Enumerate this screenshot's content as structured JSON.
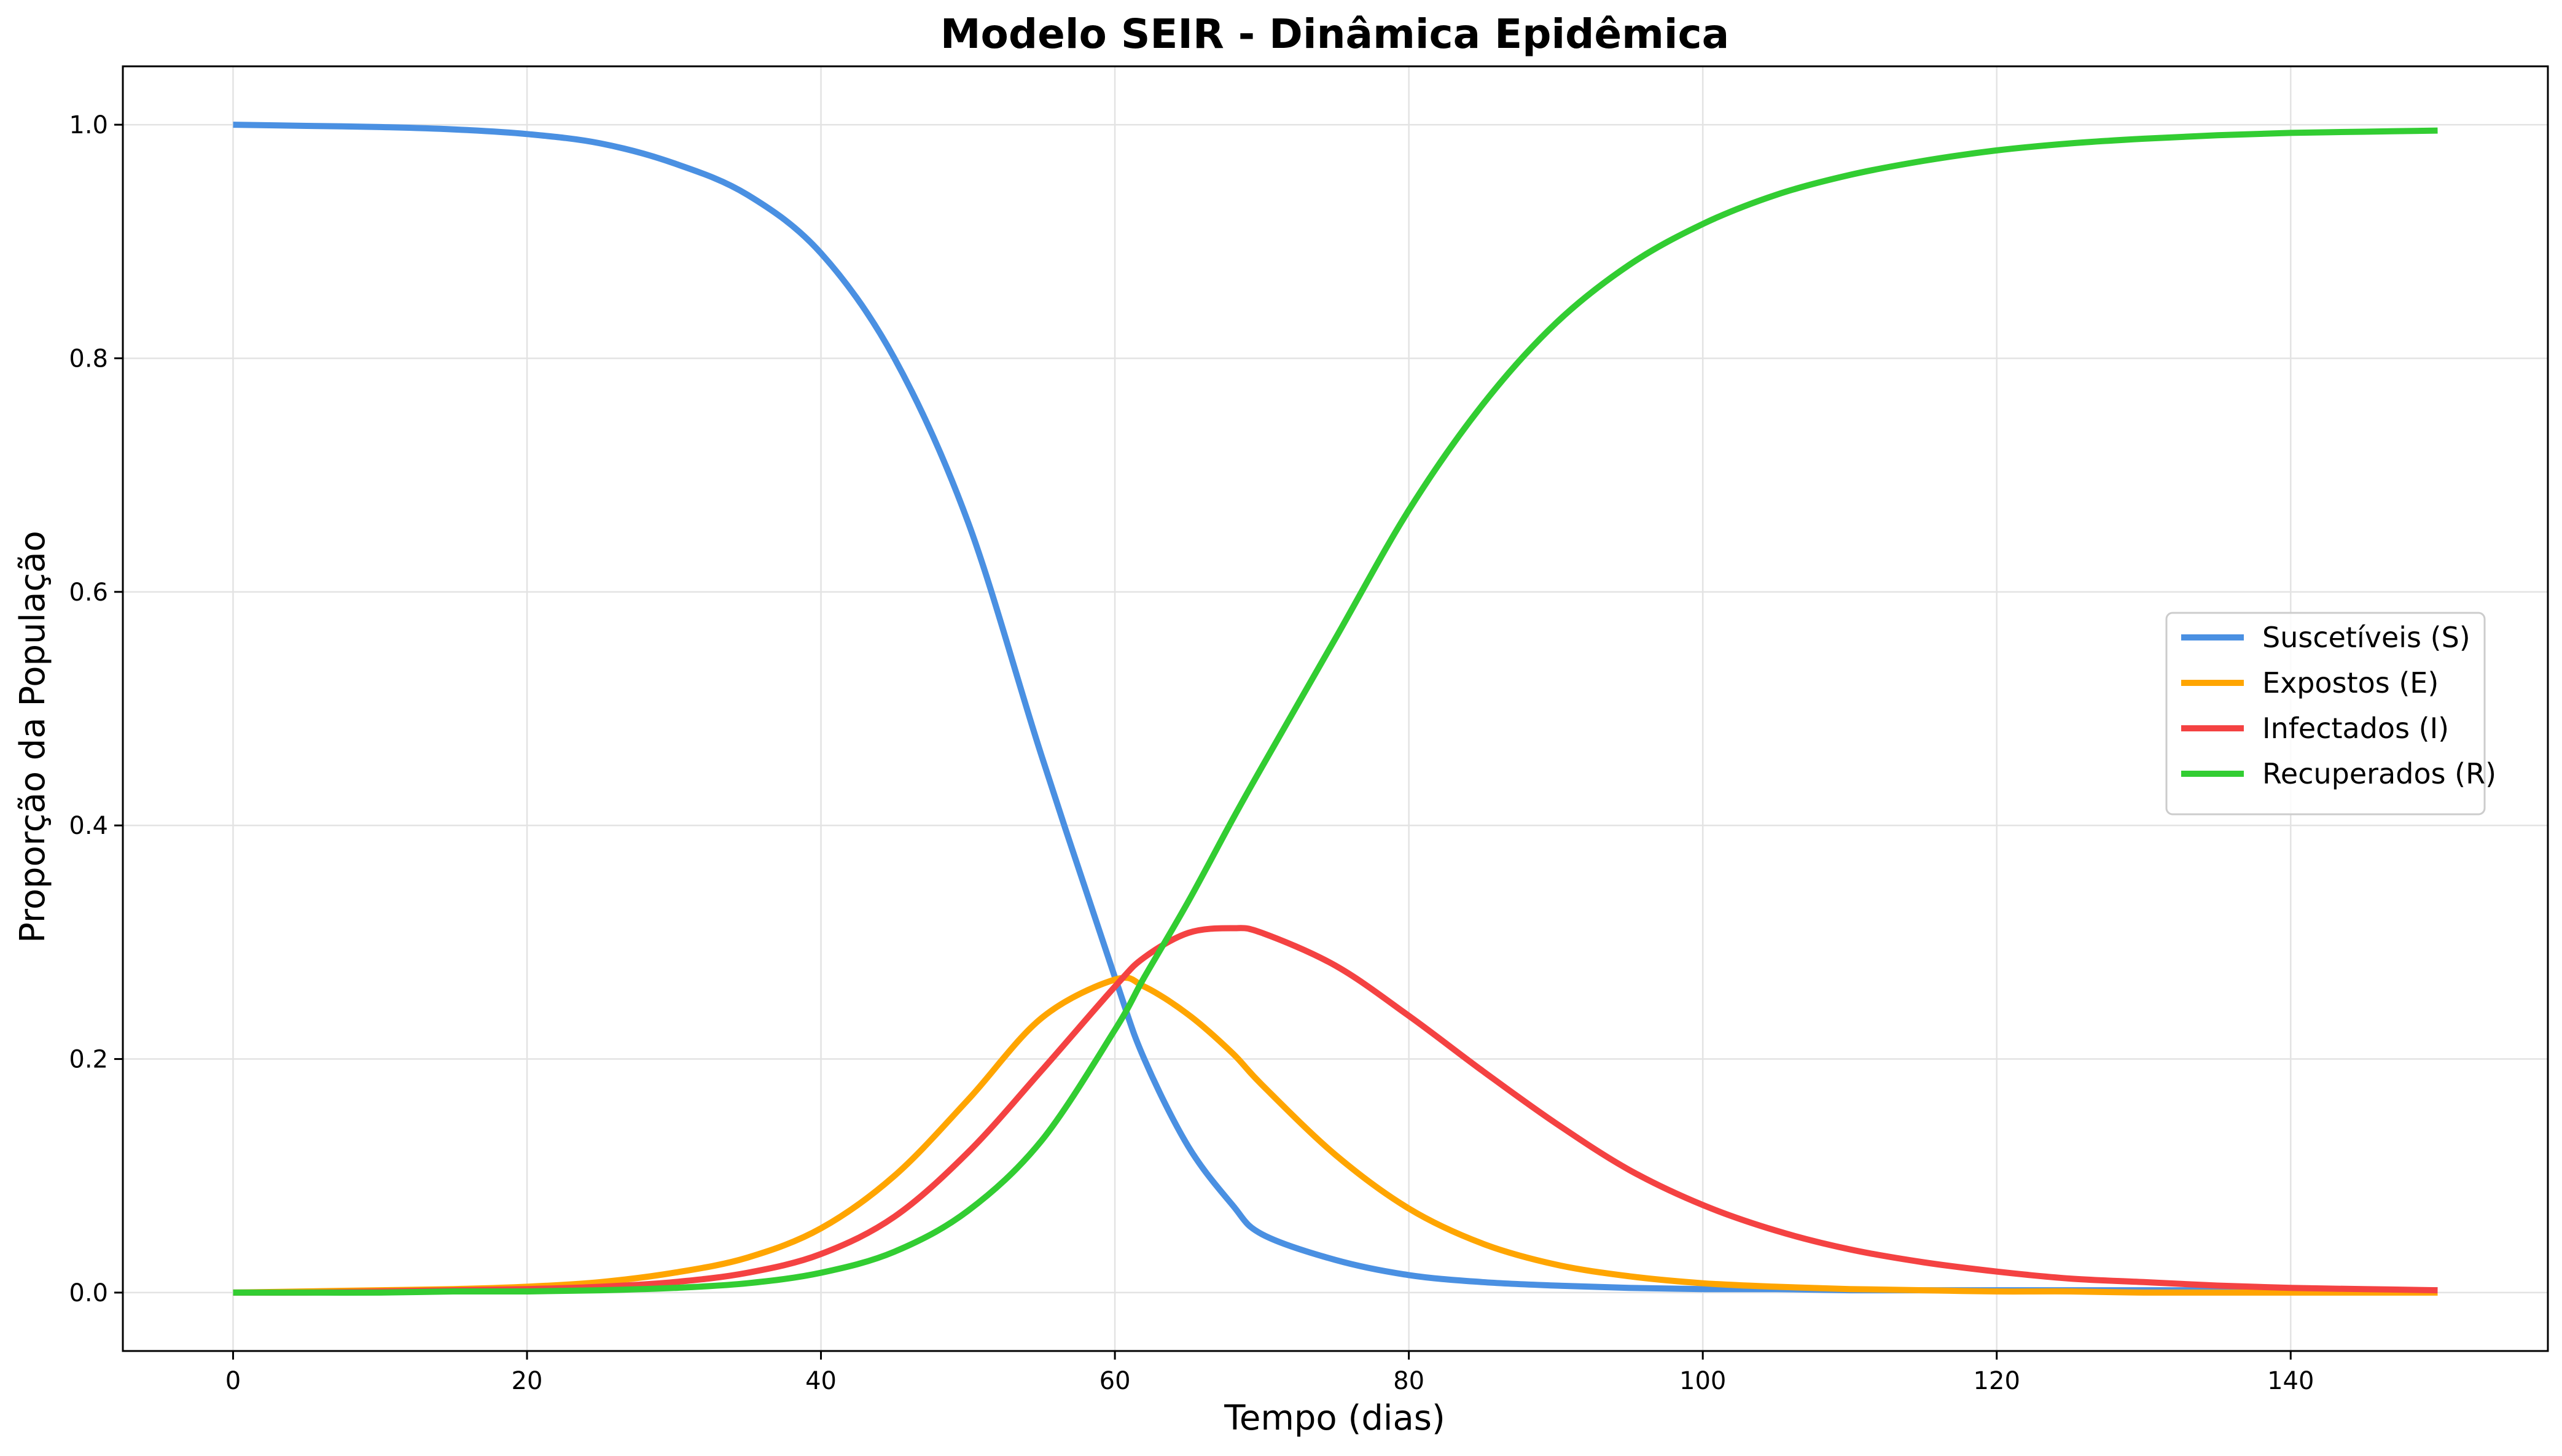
{
  "chart_data": {
    "type": "line",
    "title": "Modelo SEIR - Dinâmica Epidêmica",
    "xlabel": "Tempo (dias)",
    "ylabel": "Proporção da População",
    "xlim": [
      -7.5,
      157.5
    ],
    "ylim": [
      -0.05,
      1.05
    ],
    "xticks": [
      0,
      20,
      40,
      60,
      80,
      100,
      120,
      140
    ],
    "yticks": [
      0.0,
      0.2,
      0.4,
      0.6,
      0.8,
      1.0
    ],
    "xtick_labels": [
      "0",
      "20",
      "40",
      "60",
      "80",
      "100",
      "120",
      "140"
    ],
    "ytick_labels": [
      "0.0",
      "0.2",
      "0.4",
      "0.6",
      "0.8",
      "1.0"
    ],
    "grid": true,
    "legend_position": "center-right",
    "x": [
      0,
      5,
      10,
      15,
      20,
      25,
      30,
      35,
      40,
      45,
      50,
      55,
      60,
      62,
      65,
      68,
      70,
      75,
      80,
      85,
      90,
      95,
      100,
      105,
      110,
      115,
      120,
      125,
      130,
      135,
      140,
      145,
      150
    ],
    "series": [
      {
        "name": "Suscetíveis (S)",
        "color": "#4a90e2",
        "values": [
          1.0,
          0.999,
          0.998,
          0.996,
          0.992,
          0.984,
          0.967,
          0.94,
          0.89,
          0.8,
          0.66,
          0.46,
          0.27,
          0.2,
          0.125,
          0.075,
          0.05,
          0.028,
          0.015,
          0.009,
          0.006,
          0.004,
          0.003,
          0.003,
          0.002,
          0.002,
          0.002,
          0.002,
          0.002,
          0.002,
          0.002,
          0.002,
          0.002
        ]
      },
      {
        "name": "Expostos (E)",
        "color": "#ffa500",
        "values": [
          0.0,
          0.001,
          0.002,
          0.003,
          0.005,
          0.009,
          0.017,
          0.03,
          0.055,
          0.1,
          0.165,
          0.235,
          0.268,
          0.262,
          0.238,
          0.205,
          0.178,
          0.118,
          0.072,
          0.042,
          0.024,
          0.014,
          0.008,
          0.005,
          0.003,
          0.002,
          0.001,
          0.001,
          0.0,
          0.0,
          0.0,
          0.0,
          0.0
        ]
      },
      {
        "name": "Infectados (I)",
        "color": "#f44242",
        "values": [
          0.0,
          0.0,
          0.001,
          0.002,
          0.003,
          0.005,
          0.009,
          0.017,
          0.033,
          0.065,
          0.12,
          0.19,
          0.262,
          0.287,
          0.308,
          0.312,
          0.308,
          0.28,
          0.237,
          0.19,
          0.145,
          0.105,
          0.075,
          0.053,
          0.037,
          0.026,
          0.018,
          0.012,
          0.009,
          0.006,
          0.004,
          0.003,
          0.002
        ]
      },
      {
        "name": "Recuperados (R)",
        "color": "#32cd32",
        "values": [
          0.0,
          0.0,
          0.0,
          0.001,
          0.001,
          0.002,
          0.004,
          0.008,
          0.017,
          0.035,
          0.07,
          0.13,
          0.225,
          0.27,
          0.335,
          0.405,
          0.45,
          0.56,
          0.67,
          0.76,
          0.83,
          0.88,
          0.915,
          0.94,
          0.957,
          0.969,
          0.978,
          0.984,
          0.988,
          0.991,
          0.993,
          0.994,
          0.995
        ]
      }
    ]
  }
}
